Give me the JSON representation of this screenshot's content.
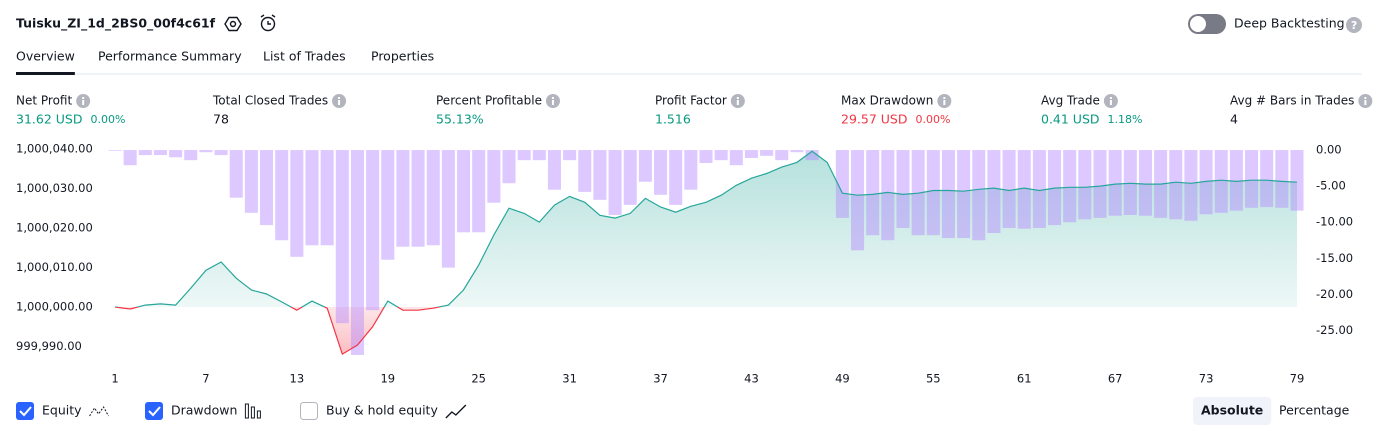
{
  "header": {
    "title": "Tuisku_ZI_1d_2BS0_00f4c61f",
    "toggle_label": "Deep Backtesting",
    "toggle_on": false
  },
  "tabs": [
    "Overview",
    "Performance Summary",
    "List of Trades",
    "Properties"
  ],
  "active_tab": 0,
  "metrics": [
    {
      "label": "Net Profit",
      "value": "31.62 USD",
      "change": "0.00%",
      "color": "#089981"
    },
    {
      "label": "Total Closed Trades",
      "value": "78",
      "color": "#131722"
    },
    {
      "label": "Percent Profitable",
      "value": "55.13%",
      "color": "#089981"
    },
    {
      "label": "Profit Factor",
      "value": "1.516",
      "color": "#089981"
    },
    {
      "label": "Max Drawdown",
      "value": "29.57 USD",
      "change": "0.00%",
      "color": "#f23645"
    },
    {
      "label": "Avg Trade",
      "value": "0.41 USD",
      "change": "1.18%",
      "color": "#089981"
    },
    {
      "label": "Avg # Bars in Trades",
      "value": "4",
      "color": "#131722"
    }
  ],
  "chart_data": {
    "type": "equity",
    "x": [
      1,
      2,
      3,
      4,
      5,
      6,
      7,
      8,
      9,
      10,
      11,
      12,
      13,
      14,
      15,
      16,
      17,
      18,
      19,
      20,
      21,
      22,
      23,
      24,
      25,
      26,
      27,
      28,
      29,
      30,
      31,
      32,
      33,
      34,
      35,
      36,
      37,
      38,
      39,
      40,
      41,
      42,
      43,
      44,
      45,
      46,
      47,
      48,
      49,
      50,
      51,
      52,
      53,
      54,
      55,
      56,
      57,
      58,
      59,
      60,
      61,
      62,
      63,
      64,
      65,
      66,
      67,
      68,
      69,
      70,
      71,
      72,
      73,
      74,
      75,
      76,
      77,
      78,
      79
    ],
    "xlim": [
      1,
      79
    ],
    "xticks": [
      1,
      7,
      13,
      19,
      25,
      31,
      37,
      43,
      49,
      55,
      61,
      67,
      73,
      79
    ],
    "baseline": 1000000,
    "series": [
      {
        "name": "Equity",
        "checked": true,
        "color": "#26a69a",
        "negative_color": "#f23645",
        "values": [
          1000000,
          999999.5,
          1000000.5,
          1000000.8,
          1000000.5,
          1000004.8,
          1000009.3,
          1000011.4,
          1000007.3,
          1000004.3,
          1000003.3,
          1000001.3,
          999999.2,
          1000001.5,
          999999.7,
          999988.1,
          999990.4,
          999995,
          1000001.5,
          999999.2,
          999999.2,
          999999.7,
          1000000.5,
          1000004.3,
          1000010.6,
          1000018.2,
          1000025,
          1000023.7,
          1000021.5,
          1000025.8,
          1000028,
          1000026.5,
          1000023.2,
          1000022.5,
          1000023.7,
          1000027.5,
          1000025.3,
          1000024,
          1000025.5,
          1000026.5,
          1000028.3,
          1000030.8,
          1000032.6,
          1000033.8,
          1000035.4,
          1000036.6,
          1000039.4,
          1000036.6,
          1000028.8,
          1000028.3,
          1000028.5,
          1000029,
          1000028.5,
          1000028.8,
          1000029.5,
          1000029.5,
          1000029.3,
          1000029.8,
          1000030.1,
          1000029.5,
          1000030.1,
          1000029.5,
          1000030.1,
          1000030.3,
          1000030.3,
          1000030.6,
          1000031.1,
          1000031.3,
          1000031.1,
          1000031.1,
          1000031.6,
          1000031.3,
          1000031.8,
          1000032.1,
          1000031.8,
          1000032.1,
          1000032.1,
          1000031.8,
          1000031.6
        ]
      },
      {
        "name": "Drawdown",
        "checked": true,
        "axis": "y2",
        "color": "#b388ff",
        "values": [
          -0.1,
          -2.1,
          -0.7,
          -0.7,
          -1,
          -1.4,
          -0.3,
          -0.7,
          -6.6,
          -8.7,
          -10.4,
          -12.5,
          -14.8,
          -13.2,
          -13.2,
          -24,
          -28.4,
          -22.2,
          -15.2,
          -13.4,
          -13.4,
          -13.2,
          -16.3,
          -11.4,
          -11.4,
          -7.3,
          -4.6,
          -1.4,
          -1.4,
          -5.5,
          -1.4,
          -5.8,
          -6.9,
          -9,
          -7.6,
          -4.4,
          -6.2,
          -7.6,
          -5.5,
          -1.8,
          -1.4,
          -2.1,
          -1.1,
          -0.8,
          -1.4,
          -0.3,
          -1.4,
          0,
          -9.4,
          -13.9,
          -11.8,
          -12.5,
          -10.8,
          -11.8,
          -11.8,
          -12.2,
          -12.2,
          -12.5,
          -11.5,
          -10.8,
          -10.9,
          -10.8,
          -10.4,
          -10,
          -9.6,
          -9.4,
          -9.1,
          -9,
          -9.1,
          -9.4,
          -9.6,
          -9.8,
          -8.9,
          -8.7,
          -8.4,
          -8,
          -7.9,
          -8,
          -8.4
        ]
      }
    ],
    "buy_hold": {
      "name": "Buy & hold equity",
      "checked": false
    },
    "ylim": [
      999986.6,
      1000041
    ],
    "yticks": [
      {
        "value": 999990,
        "label": "999,990.00"
      },
      {
        "value": 1000000,
        "label": "1,000,000.00"
      },
      {
        "value": 1000010,
        "label": "1,000,010.00"
      },
      {
        "value": 1000020,
        "label": "1,000,020.00"
      },
      {
        "value": 1000030,
        "label": "1,000,030.00"
      },
      {
        "value": 1000040,
        "label": "1,000,040.00"
      }
    ],
    "y2lim": [
      -29.1,
      0.7
    ],
    "y2ticks": [
      {
        "value": -25,
        "label": "-25.00"
      },
      {
        "value": -20,
        "label": "-20.00"
      },
      {
        "value": -15,
        "label": "-15.00"
      },
      {
        "value": -10,
        "label": "-10.00"
      },
      {
        "value": -5,
        "label": "-5.00"
      },
      {
        "value": 0,
        "label": "0.00"
      }
    ]
  },
  "mode_buttons": [
    "Absolute",
    "Percentage"
  ],
  "active_mode": 0
}
